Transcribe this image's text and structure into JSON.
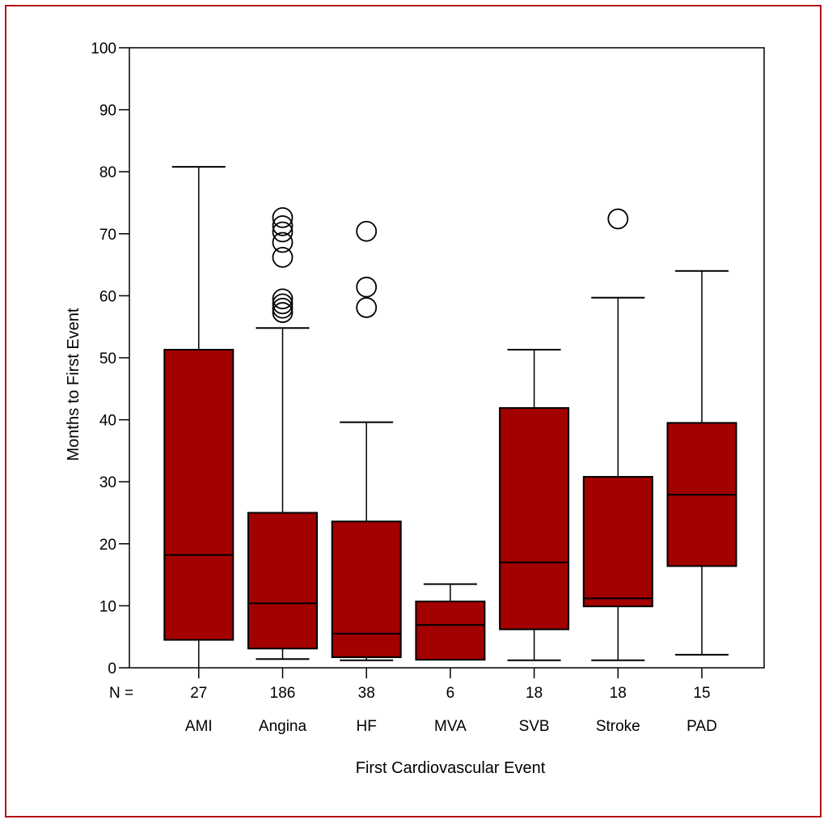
{
  "chart_data": {
    "type": "box",
    "xlabel": "First Cardiovascular Event",
    "ylabel": "Months to First Event",
    "ylim": [
      0,
      100
    ],
    "yticks": [
      0,
      10,
      20,
      30,
      40,
      50,
      60,
      70,
      80,
      90,
      100
    ],
    "n_label": "N =",
    "box_color": "#a30000",
    "frame_color": "#b5121b",
    "categories": [
      {
        "label": "AMI",
        "n": "27",
        "whisker_low": 0,
        "q1": 4.5,
        "median": 18.2,
        "q3": 51.3,
        "whisker_high": 80.8,
        "outliers": []
      },
      {
        "label": "Angina",
        "n": "186",
        "whisker_low": 1.4,
        "q1": 3.1,
        "median": 10.4,
        "q3": 25.0,
        "whisker_high": 54.8,
        "outliers": [
          57.3,
          58.0,
          58.7,
          59.5,
          66.2,
          68.6,
          70.3,
          71.3,
          72.6
        ]
      },
      {
        "label": "HF",
        "n": "38",
        "whisker_low": 1.2,
        "q1": 1.7,
        "median": 5.5,
        "q3": 23.6,
        "whisker_high": 39.6,
        "outliers": [
          58.1,
          61.4,
          70.4
        ]
      },
      {
        "label": "MVA",
        "n": "6",
        "whisker_low": 1.3,
        "q1": 1.3,
        "median": 6.9,
        "q3": 10.7,
        "whisker_high": 13.5,
        "outliers": []
      },
      {
        "label": "SVB",
        "n": "18",
        "whisker_low": 1.2,
        "q1": 6.2,
        "median": 17.0,
        "q3": 41.9,
        "whisker_high": 51.3,
        "outliers": []
      },
      {
        "label": "Stroke",
        "n": "18",
        "whisker_low": 1.2,
        "q1": 9.9,
        "median": 11.2,
        "q3": 30.8,
        "whisker_high": 59.7,
        "outliers": [
          72.4
        ]
      },
      {
        "label": "PAD",
        "n": "15",
        "whisker_low": 2.1,
        "q1": 16.4,
        "median": 27.9,
        "q3": 39.5,
        "whisker_high": 64.0,
        "outliers": []
      }
    ]
  }
}
